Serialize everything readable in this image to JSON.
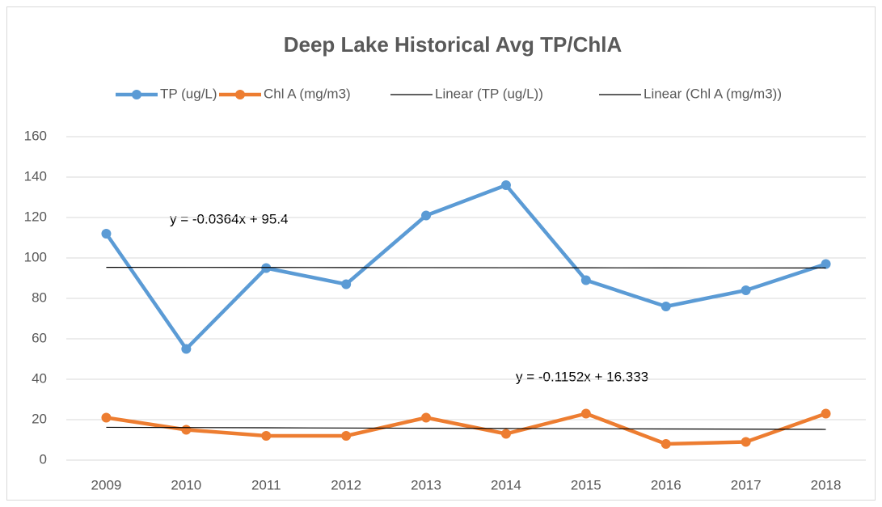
{
  "chart_data": {
    "type": "line",
    "title": "Deep Lake Historical Avg TP/ChlA",
    "categories": [
      "2009",
      "2010",
      "2011",
      "2012",
      "2013",
      "2014",
      "2015",
      "2016",
      "2017",
      "2018"
    ],
    "series": [
      {
        "name": "TP (ug/L)",
        "color": "#5b9bd5",
        "marker": true,
        "values": [
          112,
          55,
          95,
          87,
          121,
          136,
          89,
          76,
          84,
          97
        ]
      },
      {
        "name": "Chl A (mg/m3)",
        "color": "#ed7d31",
        "marker": true,
        "values": [
          21,
          15,
          12,
          12,
          21,
          13,
          23,
          8,
          9,
          23
        ]
      },
      {
        "name": "Linear (TP (ug/L))",
        "color": "#000000",
        "marker": false,
        "values": [
          95.36,
          95.33,
          95.29,
          95.25,
          95.22,
          95.18,
          95.15,
          95.11,
          95.07,
          95.04
        ]
      },
      {
        "name": "Linear (Chl A (mg/m3))",
        "color": "#000000",
        "marker": false,
        "values": [
          16.22,
          16.1,
          15.99,
          15.87,
          15.76,
          15.64,
          15.53,
          15.41,
          15.3,
          15.18
        ]
      }
    ],
    "annotations": [
      "y = -0.0364x + 95.4",
      "y = -0.1152x + 16.333"
    ],
    "ylim": [
      0,
      160
    ],
    "yticks": [
      0,
      20,
      40,
      60,
      80,
      100,
      120,
      140,
      160
    ],
    "grid": true,
    "legend": "top"
  }
}
